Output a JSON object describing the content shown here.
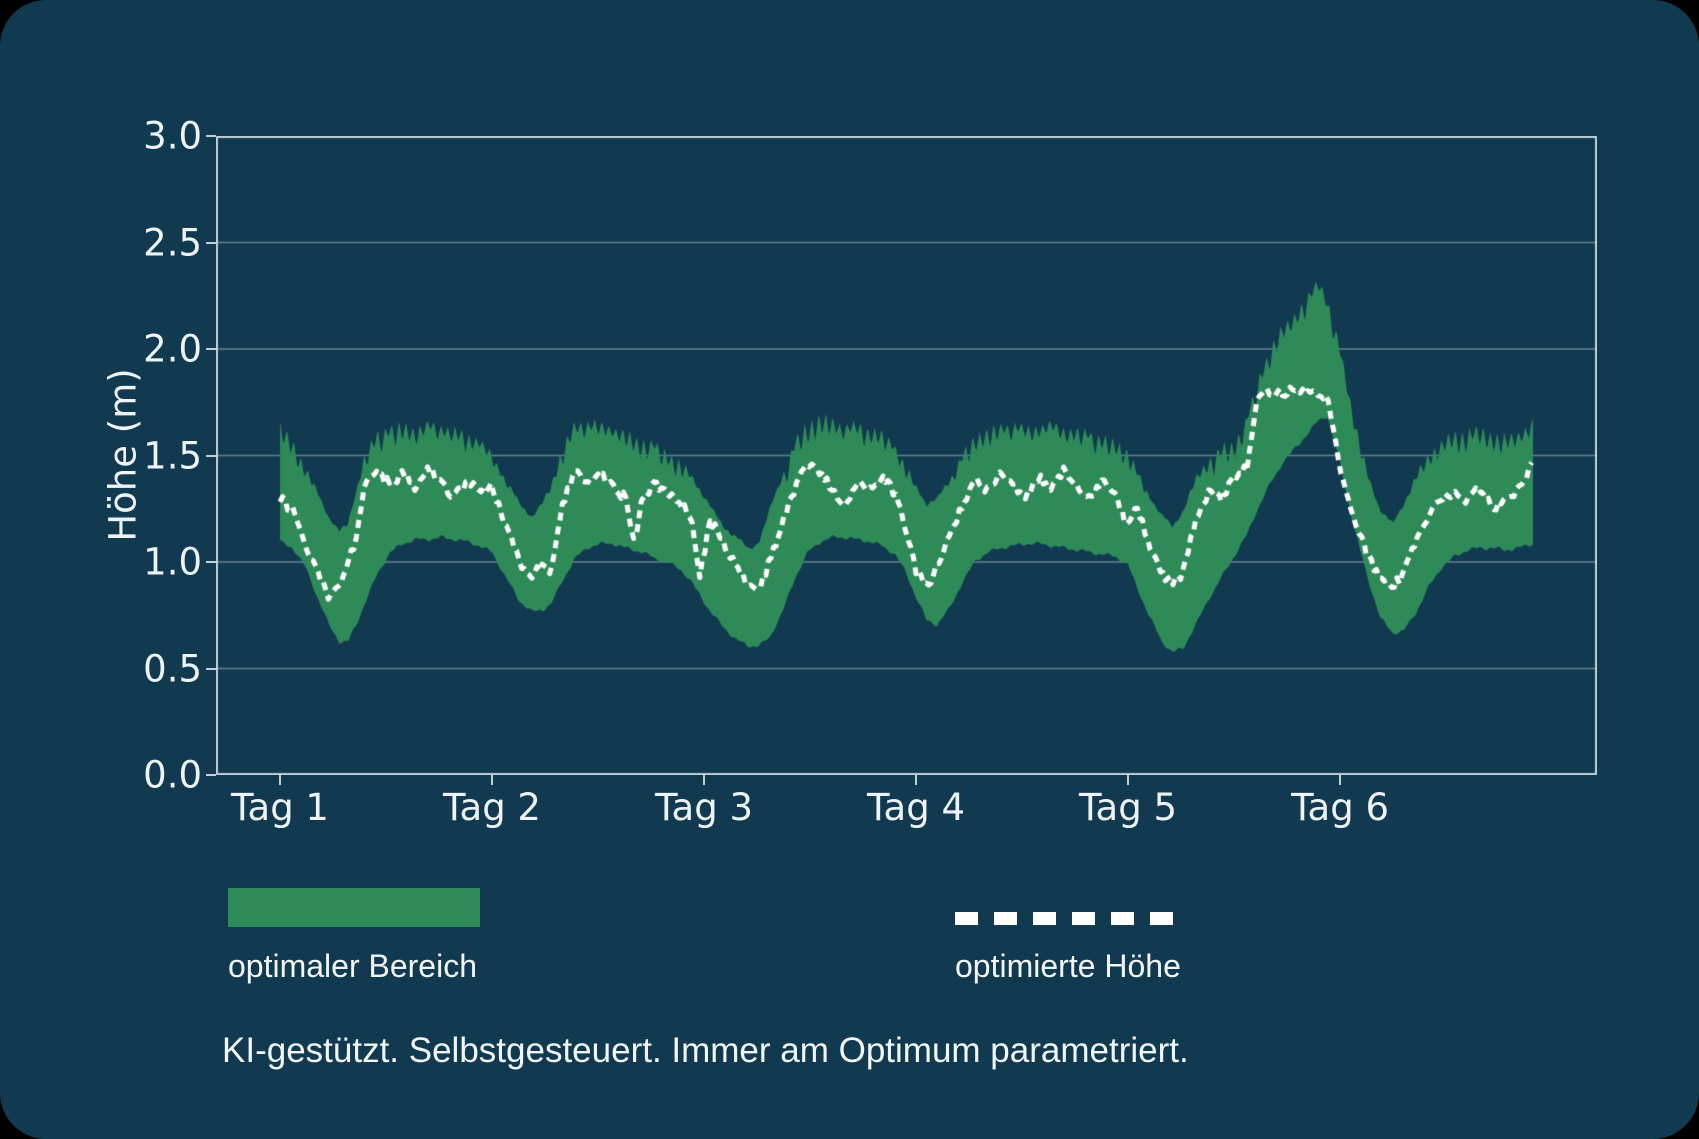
{
  "colors": {
    "background": "#113a51",
    "outer_background": "#000000",
    "band_green": "#2E8B57",
    "line_white": "#ffffff",
    "grid": "rgba(221,232,237,0.42)",
    "spine": "rgba(225,234,239,0.85)",
    "text": "#eef3f5"
  },
  "axis": {
    "ylabel": "Höhe (m)"
  },
  "legend": {
    "band_label": "optimaler Bereich",
    "line_label": "optimierte Höhe"
  },
  "tagline": "KI-gestützt. Selbstgesteuert. Immer am Optimum parametriert.",
  "chart_data": {
    "type": "area",
    "title": "",
    "xlabel": "",
    "ylabel": "Höhe (m)",
    "ylim": [
      0.0,
      3.0
    ],
    "xlim_days": [
      -0.302,
      6.212
    ],
    "grid": true,
    "legend_position": "below-left",
    "x_ticks": [
      {
        "t": 0,
        "label": "Tag 1"
      },
      {
        "t": 1,
        "label": "Tag 2"
      },
      {
        "t": 2,
        "label": "Tag 3"
      },
      {
        "t": 3,
        "label": "Tag 4"
      },
      {
        "t": 4,
        "label": "Tag 5"
      },
      {
        "t": 5,
        "label": "Tag 6"
      }
    ],
    "y_ticks": [
      {
        "v": 0.0,
        "label": "0.0"
      },
      {
        "v": 0.5,
        "label": "0.5"
      },
      {
        "v": 1.0,
        "label": "1.0"
      },
      {
        "v": 1.5,
        "label": "1.5"
      },
      {
        "v": 2.0,
        "label": "2.0"
      },
      {
        "v": 2.5,
        "label": "2.5"
      },
      {
        "v": 3.0,
        "label": "3.0"
      }
    ],
    "band_series": {
      "name": "optimaler Bereich",
      "color": "#2E8B57"
    },
    "line_series": {
      "name": "optimierte Höhe",
      "color": "#ffffff",
      "dash": [
        8,
        6
      ],
      "width": 5
    },
    "points_format": [
      "t_days",
      "band_lower_m",
      "band_upper_m",
      "optimized_height_m"
    ],
    "points": [
      [
        0.0,
        1.09,
        1.66,
        1.3
      ],
      [
        0.06,
        1.06,
        1.58,
        1.24
      ],
      [
        0.12,
        0.97,
        1.46,
        1.08
      ],
      [
        0.18,
        0.82,
        1.32,
        0.95
      ],
      [
        0.23,
        0.7,
        1.22,
        0.84
      ],
      [
        0.28,
        0.62,
        1.15,
        0.9
      ],
      [
        0.32,
        0.62,
        1.18,
        0.98
      ],
      [
        0.36,
        0.7,
        1.35,
        1.12
      ],
      [
        0.4,
        0.8,
        1.52,
        1.38
      ],
      [
        0.46,
        0.94,
        1.62,
        1.43
      ],
      [
        0.52,
        1.04,
        1.65,
        1.36
      ],
      [
        0.58,
        1.08,
        1.66,
        1.42
      ],
      [
        0.64,
        1.1,
        1.64,
        1.35
      ],
      [
        0.7,
        1.1,
        1.66,
        1.44
      ],
      [
        0.76,
        1.11,
        1.65,
        1.37
      ],
      [
        0.82,
        1.1,
        1.63,
        1.3
      ],
      [
        0.88,
        1.09,
        1.62,
        1.38
      ],
      [
        0.94,
        1.07,
        1.58,
        1.34
      ],
      [
        1.0,
        1.04,
        1.52,
        1.35
      ],
      [
        1.06,
        0.93,
        1.4,
        1.18
      ],
      [
        1.13,
        0.81,
        1.28,
        1.0
      ],
      [
        1.19,
        0.76,
        1.22,
        0.94
      ],
      [
        1.24,
        0.77,
        1.28,
        0.99
      ],
      [
        1.28,
        0.8,
        1.38,
        0.96
      ],
      [
        1.33,
        0.9,
        1.55,
        1.27
      ],
      [
        1.39,
        1.01,
        1.66,
        1.42
      ],
      [
        1.45,
        1.06,
        1.67,
        1.38
      ],
      [
        1.51,
        1.08,
        1.66,
        1.41
      ],
      [
        1.57,
        1.08,
        1.64,
        1.35
      ],
      [
        1.63,
        1.06,
        1.62,
        1.3
      ],
      [
        1.67,
        1.05,
        1.6,
        1.08
      ],
      [
        1.71,
        1.04,
        1.59,
        1.32
      ],
      [
        1.77,
        1.01,
        1.56,
        1.36
      ],
      [
        1.83,
        0.99,
        1.53,
        1.31
      ],
      [
        1.89,
        0.96,
        1.48,
        1.28
      ],
      [
        1.94,
        0.9,
        1.42,
        1.22
      ],
      [
        1.98,
        0.84,
        1.35,
        0.93
      ],
      [
        2.03,
        0.76,
        1.26,
        1.2
      ],
      [
        2.09,
        0.69,
        1.18,
        1.1
      ],
      [
        2.15,
        0.63,
        1.12,
        0.97
      ],
      [
        2.21,
        0.6,
        1.07,
        0.89
      ],
      [
        2.26,
        0.6,
        1.1,
        0.88
      ],
      [
        2.31,
        0.64,
        1.25,
        1.0
      ],
      [
        2.37,
        0.76,
        1.42,
        1.18
      ],
      [
        2.43,
        0.92,
        1.58,
        1.35
      ],
      [
        2.49,
        1.04,
        1.68,
        1.46
      ],
      [
        2.55,
        1.09,
        1.7,
        1.41
      ],
      [
        2.61,
        1.11,
        1.68,
        1.34
      ],
      [
        2.66,
        1.11,
        1.65,
        1.24
      ],
      [
        2.72,
        1.1,
        1.66,
        1.38
      ],
      [
        2.78,
        1.09,
        1.64,
        1.33
      ],
      [
        2.84,
        1.07,
        1.62,
        1.4
      ],
      [
        2.9,
        1.03,
        1.56,
        1.32
      ],
      [
        2.95,
        0.95,
        1.47,
        1.16
      ],
      [
        3.0,
        0.83,
        1.36,
        0.96
      ],
      [
        3.05,
        0.72,
        1.28,
        0.88
      ],
      [
        3.1,
        0.7,
        1.3,
        0.98
      ],
      [
        3.16,
        0.78,
        1.4,
        1.12
      ],
      [
        3.22,
        0.9,
        1.52,
        1.27
      ],
      [
        3.28,
        1.0,
        1.61,
        1.38
      ],
      [
        3.34,
        1.04,
        1.64,
        1.33
      ],
      [
        3.4,
        1.06,
        1.65,
        1.42
      ],
      [
        3.46,
        1.07,
        1.66,
        1.36
      ],
      [
        3.52,
        1.08,
        1.64,
        1.3
      ],
      [
        3.58,
        1.08,
        1.65,
        1.4
      ],
      [
        3.64,
        1.07,
        1.66,
        1.35
      ],
      [
        3.7,
        1.06,
        1.64,
        1.43
      ],
      [
        3.76,
        1.05,
        1.63,
        1.36
      ],
      [
        3.82,
        1.04,
        1.62,
        1.3
      ],
      [
        3.88,
        1.03,
        1.6,
        1.37
      ],
      [
        3.94,
        1.02,
        1.58,
        1.33
      ],
      [
        4.0,
        0.98,
        1.54,
        1.15
      ],
      [
        4.04,
        0.88,
        1.44,
        1.27
      ],
      [
        4.1,
        0.74,
        1.32,
        1.08
      ],
      [
        4.16,
        0.62,
        1.22,
        0.95
      ],
      [
        4.21,
        0.57,
        1.17,
        0.9
      ],
      [
        4.26,
        0.59,
        1.25,
        0.95
      ],
      [
        4.32,
        0.7,
        1.4,
        1.2
      ],
      [
        4.38,
        0.82,
        1.5,
        1.33
      ],
      [
        4.44,
        0.92,
        1.55,
        1.29
      ],
      [
        4.5,
        1.02,
        1.58,
        1.4
      ],
      [
        4.56,
        1.12,
        1.68,
        1.44
      ],
      [
        4.61,
        1.24,
        1.86,
        1.79
      ],
      [
        4.67,
        1.36,
        2.02,
        1.8
      ],
      [
        4.73,
        1.46,
        2.12,
        1.79
      ],
      [
        4.79,
        1.53,
        2.18,
        1.81
      ],
      [
        4.85,
        1.6,
        2.26,
        1.79
      ],
      [
        4.9,
        1.66,
        2.35,
        1.8
      ],
      [
        4.94,
        1.68,
        2.24,
        1.77
      ],
      [
        5.0,
        1.46,
        2.02,
        1.43
      ],
      [
        5.06,
        1.18,
        1.72,
        1.22
      ],
      [
        5.13,
        0.92,
        1.42,
        1.03
      ],
      [
        5.19,
        0.73,
        1.25,
        0.93
      ],
      [
        5.25,
        0.66,
        1.18,
        0.89
      ],
      [
        5.3,
        0.67,
        1.28,
        0.94
      ],
      [
        5.36,
        0.76,
        1.42,
        1.1
      ],
      [
        5.42,
        0.88,
        1.52,
        1.22
      ],
      [
        5.48,
        0.97,
        1.58,
        1.3
      ],
      [
        5.54,
        1.02,
        1.62,
        1.33
      ],
      [
        5.6,
        1.05,
        1.63,
        1.28
      ],
      [
        5.66,
        1.06,
        1.64,
        1.35
      ],
      [
        5.72,
        1.06,
        1.62,
        1.25
      ],
      [
        5.78,
        1.05,
        1.6,
        1.3
      ],
      [
        5.84,
        1.06,
        1.62,
        1.33
      ],
      [
        5.88,
        1.07,
        1.64,
        1.4
      ],
      [
        5.91,
        1.08,
        1.67,
        1.49
      ]
    ],
    "texture": {
      "seed": 7,
      "spike_period_days": 0.033,
      "spike_max_depth": 0.13,
      "line_jitter": 0.022,
      "lower_jitter": 0.012
    }
  }
}
